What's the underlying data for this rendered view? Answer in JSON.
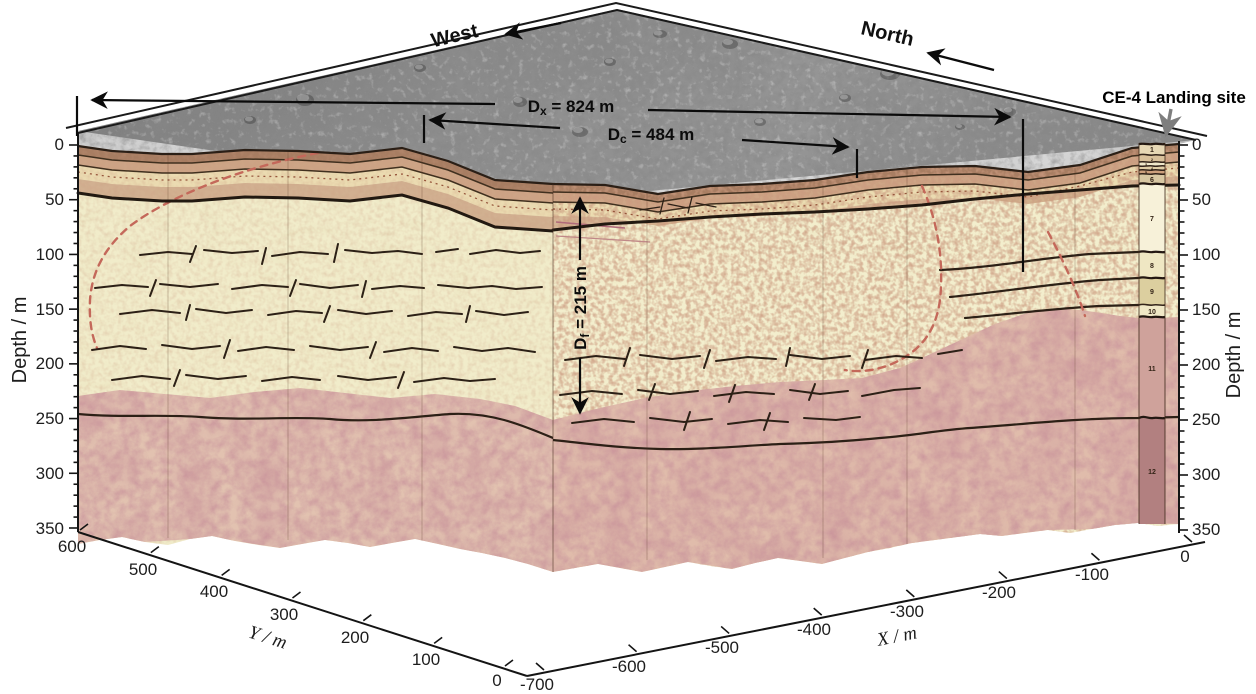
{
  "figure": {
    "directions": {
      "west": "West",
      "north": "North"
    },
    "landing_site_label": "CE-4 Landing site",
    "annotations": {
      "dx": {
        "prefix": "D",
        "sub": "x",
        "rest": " = 824 m"
      },
      "dc": {
        "prefix": "D",
        "sub": "c",
        "rest": " = 484 m"
      },
      "df": {
        "prefix": "D",
        "sub": "f",
        "rest": " = 215 m"
      }
    },
    "axes": {
      "depth": {
        "label": "Depth / m",
        "ticks": [
          "0",
          "50",
          "100",
          "150",
          "200",
          "250",
          "300",
          "350"
        ]
      },
      "y": {
        "label": "Y / m",
        "ticks": [
          "600",
          "500",
          "400",
          "300",
          "200",
          "100",
          "0"
        ]
      },
      "x": {
        "label": "X / m",
        "ticks": [
          "-700",
          "-600",
          "-500",
          "-400",
          "-300",
          "-200",
          "-100",
          "0"
        ]
      }
    },
    "column": {
      "units": [
        {
          "id": "1"
        },
        {
          "id": "2"
        },
        {
          "id": "3"
        },
        {
          "id": "4"
        },
        {
          "id": "5"
        },
        {
          "id": "6"
        },
        {
          "id": "7"
        },
        {
          "id": "8"
        },
        {
          "id": "9"
        },
        {
          "id": "10"
        },
        {
          "id": "11"
        },
        {
          "id": "12"
        }
      ]
    }
  },
  "chart_data": {
    "type": "3d-section",
    "axes": {
      "depth": {
        "label": "Depth / m",
        "range": [
          0,
          350
        ],
        "tick_interval": 50,
        "minor_tick_interval": 10,
        "sides": [
          "left",
          "right"
        ]
      },
      "y": {
        "label": "Y / m",
        "range": [
          600,
          0
        ],
        "tick_interval": 100
      },
      "x": {
        "label": "X / m",
        "range": [
          -700,
          0
        ],
        "tick_interval": 100
      }
    },
    "direction_arrows": [
      "West",
      "North"
    ],
    "site_marker": {
      "label": "CE-4 Landing site"
    },
    "measurements": [
      {
        "name": "Dx",
        "value": 824,
        "unit": "m",
        "orientation": "horizontal"
      },
      {
        "name": "Dc",
        "value": 484,
        "unit": "m",
        "orientation": "horizontal"
      },
      {
        "name": "Df",
        "value": 215,
        "unit": "m",
        "orientation": "vertical"
      }
    ],
    "stratigraphic_units": [
      {
        "id": 1,
        "depth_top_m": 0,
        "depth_bottom_m": 9
      },
      {
        "id": 2,
        "depth_top_m": 9,
        "depth_bottom_m": 15
      },
      {
        "id": 3,
        "depth_top_m": 15,
        "depth_bottom_m": 19
      },
      {
        "id": 4,
        "depth_top_m": 19,
        "depth_bottom_m": 23
      },
      {
        "id": 5,
        "depth_top_m": 23,
        "depth_bottom_m": 27
      },
      {
        "id": 6,
        "depth_top_m": 27,
        "depth_bottom_m": 36
      },
      {
        "id": 7,
        "depth_top_m": 36,
        "depth_bottom_m": 97
      },
      {
        "id": 8,
        "depth_top_m": 97,
        "depth_bottom_m": 121
      },
      {
        "id": 9,
        "depth_top_m": 121,
        "depth_bottom_m": 146
      },
      {
        "id": 10,
        "depth_top_m": 146,
        "depth_bottom_m": 157
      },
      {
        "id": 11,
        "depth_top_m": 157,
        "depth_bottom_m": 248
      },
      {
        "id": 12,
        "depth_top_m": 248,
        "depth_bottom_m": 341
      }
    ]
  },
  "colors": {
    "surface_gray": "#8d8d8d",
    "regolith_brown": "#9a6a50",
    "salmon_band": "#c49274",
    "cream_unit": "#f1ecca",
    "cream_band": "#ead9ae",
    "pink_unit": "#d9a896",
    "mauve_unit": "#b28080",
    "dashed_outline": "#c4685a",
    "reflector_black": "#2c2016",
    "axis_black": "#141414"
  }
}
